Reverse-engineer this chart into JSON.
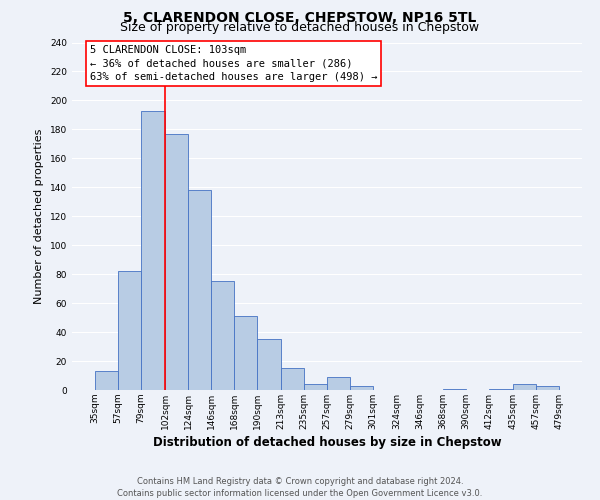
{
  "title": "5, CLARENDON CLOSE, CHEPSTOW, NP16 5TL",
  "subtitle": "Size of property relative to detached houses in Chepstow",
  "xlabel": "Distribution of detached houses by size in Chepstow",
  "ylabel": "Number of detached properties",
  "bar_color": "#b8cce4",
  "bar_edge_color": "#4472c4",
  "bar_left_edges": [
    35,
    57,
    79,
    102,
    124,
    146,
    168,
    190,
    213,
    235,
    257,
    279,
    301,
    324,
    346,
    368,
    390,
    412,
    435,
    457
  ],
  "bar_heights": [
    13,
    82,
    193,
    177,
    138,
    75,
    51,
    35,
    15,
    4,
    9,
    3,
    0,
    0,
    0,
    1,
    0,
    1,
    4,
    3
  ],
  "bar_widths": [
    22,
    22,
    23,
    22,
    22,
    22,
    22,
    23,
    22,
    22,
    22,
    22,
    23,
    22,
    22,
    22,
    22,
    23,
    22,
    22
  ],
  "xtick_labels": [
    "35sqm",
    "57sqm",
    "79sqm",
    "102sqm",
    "124sqm",
    "146sqm",
    "168sqm",
    "190sqm",
    "213sqm",
    "235sqm",
    "257sqm",
    "279sqm",
    "301sqm",
    "324sqm",
    "346sqm",
    "368sqm",
    "390sqm",
    "412sqm",
    "435sqm",
    "457sqm",
    "479sqm"
  ],
  "xtick_positions": [
    35,
    57,
    79,
    102,
    124,
    146,
    168,
    190,
    213,
    235,
    257,
    279,
    301,
    324,
    346,
    368,
    390,
    412,
    435,
    457,
    479
  ],
  "ylim": [
    0,
    240
  ],
  "xlim": [
    13,
    501
  ],
  "yticks": [
    0,
    20,
    40,
    60,
    80,
    100,
    120,
    140,
    160,
    180,
    200,
    220,
    240
  ],
  "red_line_x": 102,
  "annotation_title": "5 CLARENDON CLOSE: 103sqm",
  "annotation_line1": "← 36% of detached houses are smaller (286)",
  "annotation_line2": "63% of semi-detached houses are larger (498) →",
  "footer_line1": "Contains HM Land Registry data © Crown copyright and database right 2024.",
  "footer_line2": "Contains public sector information licensed under the Open Government Licence v3.0.",
  "background_color": "#eef2f9",
  "grid_color": "#ffffff",
  "title_fontsize": 10,
  "subtitle_fontsize": 9,
  "ylabel_fontsize": 8,
  "xlabel_fontsize": 8.5,
  "tick_fontsize": 6.5,
  "annotation_fontsize": 7.5,
  "footer_fontsize": 6.0
}
